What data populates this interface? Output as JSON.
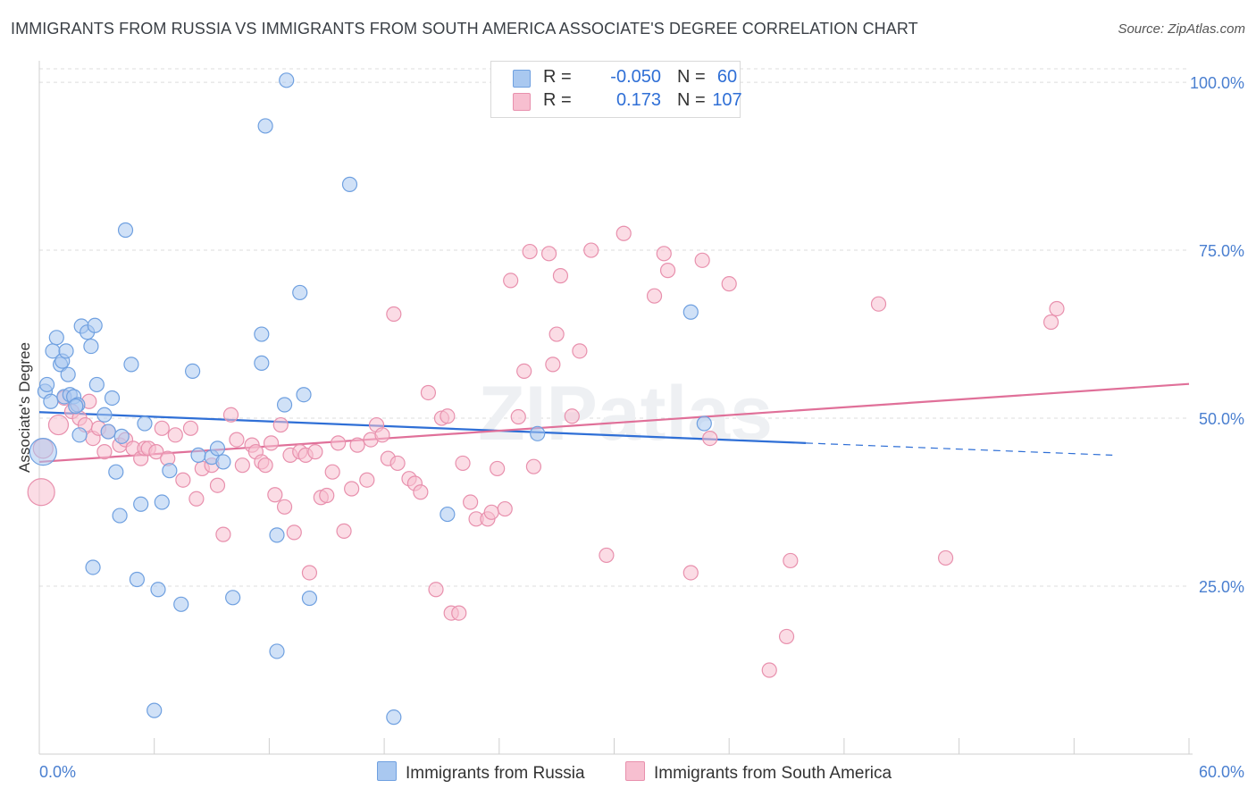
{
  "title": "IMMIGRANTS FROM RUSSIA VS IMMIGRANTS FROM SOUTH AMERICA ASSOCIATE'S DEGREE CORRELATION CHART",
  "source": "Source: ZipAtlas.com",
  "watermark": "ZIPatlas",
  "colors": {
    "blue_fill": "#a9c8f0",
    "blue_stroke": "#6fa0e0",
    "blue_line": "#2f6fd6",
    "pink_fill": "#f7bfd0",
    "pink_stroke": "#e890ad",
    "pink_line": "#e07099",
    "axis_text": "#4a7fd0",
    "grid": "#dcdcdc"
  },
  "legend_top": [
    {
      "r_label": "R =",
      "r_value": "-0.050",
      "n_label": "N =",
      "n_value": "60"
    },
    {
      "r_label": "R =",
      "r_value": "0.173",
      "n_label": "N =",
      "n_value": "107"
    }
  ],
  "legend_bottom": [
    "Immigrants from Russia",
    "Immigrants from South America"
  ],
  "chart_data": {
    "type": "scatter",
    "xlabel": "",
    "ylabel": "Associate's Degree",
    "xlim": [
      0,
      60
    ],
    "ylim": [
      0,
      104
    ],
    "x_tick_labels": [
      "0.0%",
      "60.0%"
    ],
    "y_tick_labels": [
      "25.0%",
      "50.0%",
      "75.0%",
      "100.0%"
    ],
    "y_ticks": [
      25,
      50,
      75,
      100
    ],
    "grid": true,
    "series": [
      {
        "name": "Immigrants from Russia",
        "r": -0.05,
        "n": 60,
        "trend": {
          "x0": 0,
          "y0": 50.9,
          "x1": 40,
          "y1": 46.3,
          "dash_x1": 56,
          "dash_y1": 44.5
        },
        "points": [
          [
            0.2,
            45,
            3
          ],
          [
            0.3,
            54,
            1
          ],
          [
            0.4,
            55,
            1
          ],
          [
            0.6,
            52.5,
            1
          ],
          [
            0.7,
            60,
            1
          ],
          [
            0.9,
            62,
            1
          ],
          [
            1.1,
            58,
            1
          ],
          [
            1.2,
            58.5,
            1
          ],
          [
            1.4,
            60,
            1
          ],
          [
            1.3,
            53.2,
            1
          ],
          [
            1.5,
            56.5,
            1
          ],
          [
            1.6,
            53.5,
            1
          ],
          [
            1.8,
            53.2,
            1
          ],
          [
            2,
            52,
            1
          ],
          [
            2.1,
            47.5,
            1
          ],
          [
            1.9,
            51.8,
            1
          ],
          [
            2.2,
            63.7,
            1
          ],
          [
            2.5,
            62.8,
            1
          ],
          [
            2.7,
            60.7,
            1
          ],
          [
            2.9,
            63.8,
            1
          ],
          [
            3,
            55,
            1
          ],
          [
            3.4,
            50.5,
            1
          ],
          [
            3.6,
            48,
            1
          ],
          [
            3.8,
            53,
            1
          ],
          [
            4,
            42,
            1
          ],
          [
            4.2,
            35.5,
            1
          ],
          [
            4.5,
            78,
            1
          ],
          [
            4.8,
            58,
            1
          ],
          [
            5.1,
            26,
            1
          ],
          [
            5.3,
            37.2,
            1
          ],
          [
            5.5,
            49.2,
            1
          ],
          [
            6,
            6.5,
            1
          ],
          [
            6.2,
            24.5,
            1
          ],
          [
            6.4,
            37.5,
            1
          ],
          [
            6.8,
            42.2,
            1
          ],
          [
            7.4,
            22.3,
            1
          ],
          [
            8,
            57,
            1
          ],
          [
            8.3,
            44.5,
            1
          ],
          [
            9.0,
            44.2,
            1
          ],
          [
            9.3,
            45.5,
            1
          ],
          [
            9.6,
            43.5,
            1
          ],
          [
            10.1,
            23.3,
            1
          ],
          [
            11.6,
            62.5,
            1
          ],
          [
            11.6,
            58.2,
            1
          ],
          [
            11.8,
            93.5,
            1
          ],
          [
            12.4,
            32.6,
            1
          ],
          [
            12.4,
            15.3,
            1
          ],
          [
            12.8,
            52,
            1
          ],
          [
            12.9,
            100.3,
            1
          ],
          [
            13.6,
            68.7,
            1
          ],
          [
            13.8,
            53.5,
            1
          ],
          [
            14.1,
            23.2,
            1
          ],
          [
            16.2,
            84.8,
            1
          ],
          [
            18.5,
            5.5,
            1
          ],
          [
            21.3,
            35.7,
            1
          ],
          [
            26,
            47.7,
            1
          ],
          [
            34,
            65.8,
            1
          ],
          [
            34.7,
            49.2,
            1
          ],
          [
            2.8,
            27.8,
            1
          ],
          [
            4.3,
            47.3,
            1
          ]
        ]
      },
      {
        "name": "Immigrants from South America",
        "r": 0.173,
        "n": 107,
        "trend": {
          "x0": 0,
          "y0": 43.5,
          "x1": 60,
          "y1": 55.1
        },
        "points": [
          [
            0.1,
            39,
            3
          ],
          [
            0.2,
            45.5,
            2
          ],
          [
            1,
            49,
            2
          ],
          [
            1.3,
            53,
            1
          ],
          [
            1.7,
            51,
            1
          ],
          [
            2.1,
            50,
            1
          ],
          [
            2.4,
            49,
            1
          ],
          [
            2.6,
            52.5,
            1
          ],
          [
            2.8,
            47,
            1
          ],
          [
            3.1,
            48.5,
            1
          ],
          [
            3.4,
            45,
            1
          ],
          [
            3.6,
            48,
            1
          ],
          [
            4.2,
            46,
            1
          ],
          [
            4.5,
            46.8,
            1
          ],
          [
            4.9,
            45.5,
            1
          ],
          [
            5.3,
            44,
            1
          ],
          [
            5.5,
            45.5,
            1
          ],
          [
            5.7,
            45.5,
            1
          ],
          [
            6.1,
            45,
            1
          ],
          [
            6.4,
            48.5,
            1
          ],
          [
            6.7,
            44,
            1
          ],
          [
            7.1,
            47.5,
            1
          ],
          [
            7.5,
            40.8,
            1
          ],
          [
            7.9,
            48.5,
            1
          ],
          [
            8.2,
            38,
            1
          ],
          [
            8.5,
            42.5,
            1
          ],
          [
            9,
            43,
            1
          ],
          [
            9.3,
            40,
            1
          ],
          [
            9.6,
            32.7,
            1
          ],
          [
            10,
            50.5,
            1
          ],
          [
            10.3,
            46.8,
            1
          ],
          [
            10.6,
            43,
            1
          ],
          [
            11.1,
            46,
            1
          ],
          [
            11.3,
            45,
            1
          ],
          [
            11.6,
            43.5,
            1
          ],
          [
            11.8,
            43,
            1
          ],
          [
            12.1,
            46.3,
            1
          ],
          [
            12.3,
            38.6,
            1
          ],
          [
            12.6,
            49,
            1
          ],
          [
            12.8,
            36.8,
            1
          ],
          [
            13.1,
            44.5,
            1
          ],
          [
            13.3,
            33,
            1
          ],
          [
            13.6,
            45,
            1
          ],
          [
            13.9,
            44.5,
            1
          ],
          [
            14.1,
            27,
            1
          ],
          [
            14.4,
            45,
            1
          ],
          [
            14.7,
            38.2,
            1
          ],
          [
            15,
            38.5,
            1
          ],
          [
            15.3,
            42,
            1
          ],
          [
            15.6,
            46.3,
            1
          ],
          [
            15.9,
            33.2,
            1
          ],
          [
            16.3,
            39.5,
            1
          ],
          [
            16.6,
            46,
            1
          ],
          [
            17.1,
            40.8,
            1
          ],
          [
            17.3,
            46.8,
            1
          ],
          [
            17.6,
            49,
            1
          ],
          [
            17.9,
            47.5,
            1
          ],
          [
            18.2,
            44,
            1
          ],
          [
            18.5,
            65.5,
            1
          ],
          [
            18.7,
            43.3,
            1
          ],
          [
            19.3,
            41,
            1
          ],
          [
            19.6,
            40.3,
            1
          ],
          [
            19.9,
            39,
            1
          ],
          [
            20.3,
            53.8,
            1
          ],
          [
            20.7,
            24.5,
            1
          ],
          [
            21,
            50,
            1
          ],
          [
            21.3,
            50.3,
            1
          ],
          [
            21.5,
            21,
            1
          ],
          [
            21.9,
            21,
            1
          ],
          [
            22.1,
            43.3,
            1
          ],
          [
            22.5,
            37.5,
            1
          ],
          [
            22.8,
            35,
            1
          ],
          [
            23.4,
            35,
            1
          ],
          [
            23.6,
            36,
            1
          ],
          [
            23.9,
            42.5,
            1
          ],
          [
            24.3,
            36.5,
            1
          ],
          [
            24.6,
            70.5,
            1
          ],
          [
            25,
            50.2,
            1
          ],
          [
            25.3,
            57,
            1
          ],
          [
            25.6,
            74.8,
            1
          ],
          [
            25.8,
            42.8,
            1
          ],
          [
            26.6,
            74.5,
            1
          ],
          [
            26.8,
            58,
            1
          ],
          [
            27,
            62.5,
            1
          ],
          [
            27.2,
            71.2,
            1
          ],
          [
            27.8,
            50.3,
            1
          ],
          [
            28.2,
            60,
            1
          ],
          [
            28.8,
            75,
            1
          ],
          [
            29.6,
            29.6,
            1
          ],
          [
            30.5,
            77.5,
            1
          ],
          [
            32.1,
            68.2,
            1
          ],
          [
            32.6,
            74.5,
            1
          ],
          [
            32.8,
            72,
            1
          ],
          [
            34,
            27,
            1
          ],
          [
            34.6,
            73.5,
            1
          ],
          [
            35,
            47,
            1
          ],
          [
            36,
            70,
            1
          ],
          [
            38.1,
            12.5,
            1
          ],
          [
            39,
            17.5,
            1
          ],
          [
            39.2,
            28.8,
            1
          ],
          [
            43.8,
            67,
            1
          ],
          [
            47.3,
            29.2,
            1
          ],
          [
            52.8,
            64.3,
            1
          ],
          [
            53.1,
            66.3,
            1
          ]
        ]
      }
    ]
  }
}
